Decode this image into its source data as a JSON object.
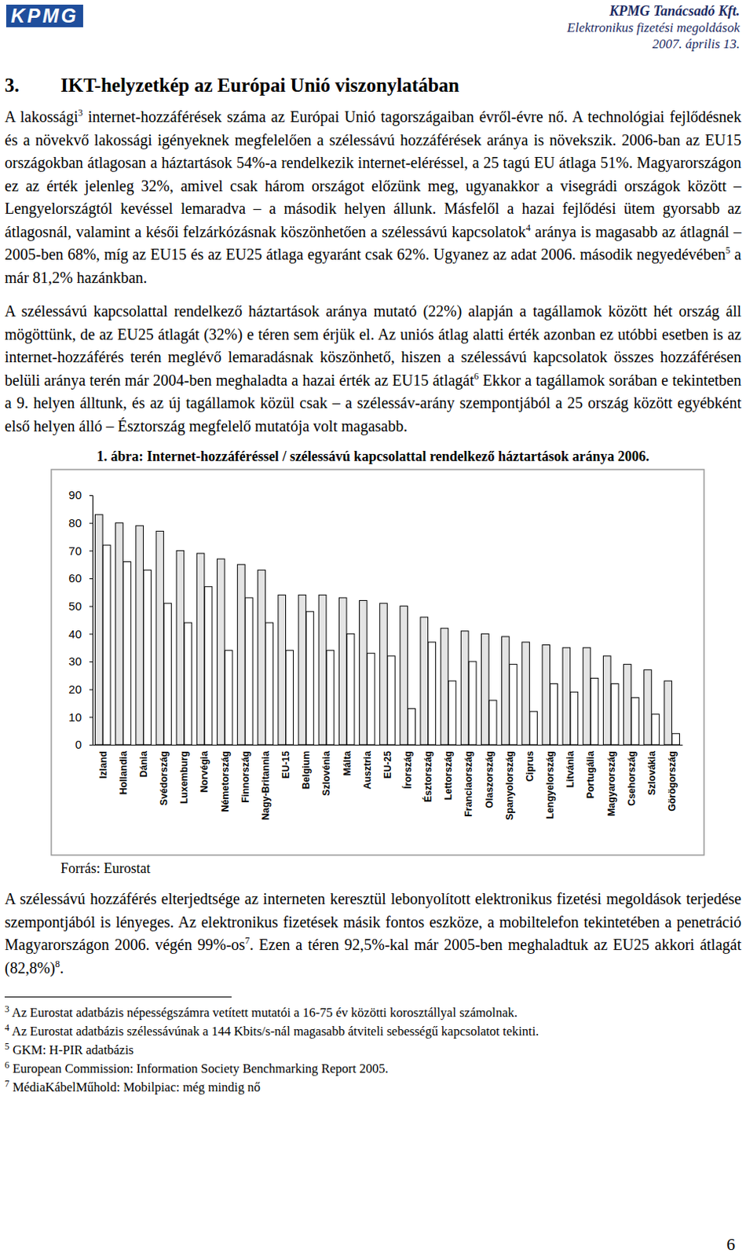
{
  "header": {
    "logo": "KPMG",
    "company": "KPMG Tanácsadó Kft.",
    "subtitle": "Elektronikus fizetési megoldások",
    "date": "2007. április 13."
  },
  "section": {
    "number": "3.",
    "title": "IKT-helyzetkép az Európai Unió viszonylatában"
  },
  "paragraphs_before": [
    {
      "runs": [
        {
          "text": "A lakossági"
        },
        {
          "sup": "3"
        },
        {
          "text": " internet-hozzáférések száma az Európai Unió tagországaiban évről-évre nő. A technológiai fejlődésnek és a növekvő lakossági igényeknek megfelelően a szélessávú hozzáférések aránya is növekszik. 2006-ban az EU15 országokban átlagosan a háztartások 54%-a rendelkezik internet-eléréssel, a 25 tagú EU átlaga 51%. Magyarországon ez az érték jelenleg 32%, amivel csak három országot előzünk meg, ugyanakkor a visegrádi országok között – Lengyelországtól kevéssel lemaradva – a második helyen állunk. Másfelől a hazai fejlődési ütem gyorsabb az átlagosnál, valamint a késői felzárkózásnak köszönhetően a szélessávú kapcsolatok"
        },
        {
          "sup": "4"
        },
        {
          "text": " aránya is magasabb az átlagnál – 2005-ben 68%, míg az EU15 és az EU25 átlaga egyaránt csak 62%. Ugyanez az adat 2006. második negyedévében"
        },
        {
          "sup": "5"
        },
        {
          "text": " a már 81,2% hazánkban."
        }
      ]
    },
    {
      "runs": [
        {
          "text": "A szélessávú kapcsolattal rendelkező háztartások aránya mutató (22%) alapján a tagállamok között hét ország áll mögöttünk, de az EU25 átlagát (32%) e téren sem érjük el. Az uniós átlag alatti érték azonban ez utóbbi esetben is az internet-hozzáférés terén meglévő lemaradásnak köszönhető, hiszen a szélessávú kapcsolatok összes hozzáférésen belüli aránya terén már 2004-ben meghaladta a hazai érték az EU15 átlagát"
        },
        {
          "sup": "6"
        },
        {
          "text": " Ekkor a tagállamok sorában e tekintetben a 9. helyen álltunk, és az új tagállamok közül csak – a szélessáv-arány szempontjából a 25 ország között egyébként első helyen álló – Észtország megfelelő mutatója volt magasabb."
        }
      ]
    }
  ],
  "chart_data": {
    "type": "bar",
    "title": "1. ábra: Internet-hozzáféréssel / szélessávú kapcsolattal rendelkező háztartások aránya 2006.",
    "categories": [
      "Izland",
      "Hollandia",
      "Dánia",
      "Svédország",
      "Luxemburg",
      "Norvégia",
      "Németország",
      "Finnország",
      "Nagy-Britannia",
      "EU-15",
      "Belgium",
      "Szlovénia",
      "Málta",
      "Ausztria",
      "EU-25",
      "Írország",
      "Észtország",
      "Lettország",
      "Franciaország",
      "Olaszország",
      "Spanyolország",
      "Ciprus",
      "Lengyelország",
      "Litvánia",
      "Portugália",
      "Magyarország",
      "Csehország",
      "Szlovákia",
      "Görögország"
    ],
    "series": [
      {
        "color": "#e4e4e4",
        "values": [
          83,
          80,
          79,
          77,
          70,
          69,
          67,
          65,
          63,
          54,
          54,
          54,
          53,
          52,
          51,
          50,
          46,
          42,
          41,
          40,
          39,
          37,
          36,
          35,
          35,
          32,
          29,
          27,
          23
        ]
      },
      {
        "color": "#ffffff",
        "values": [
          72,
          66,
          63,
          51,
          44,
          57,
          34,
          53,
          44,
          34,
          48,
          34,
          40,
          33,
          32,
          13,
          37,
          23,
          30,
          16,
          29,
          12,
          22,
          19,
          24,
          22,
          17,
          11,
          4
        ]
      }
    ],
    "ylim": [
      0,
      90
    ],
    "yticks": [
      0,
      10,
      20,
      30,
      40,
      50,
      60,
      70,
      80,
      90
    ],
    "grid": false
  },
  "figure_source": "Forrás: Eurostat",
  "paragraphs_after": [
    {
      "runs": [
        {
          "text": "A szélessávú hozzáférés elterjedtsége az interneten keresztül lebonyolított elektronikus fizetési megoldások terjedése szempontjából is lényeges. Az elektronikus fizetések másik fontos eszköze, a mobiltelefon tekintetében a penetráció Magyarországon 2006. végén 99%-os"
        },
        {
          "sup": "7"
        },
        {
          "text": ". Ezen a téren 92,5%-kal már 2005-ben meghaladtuk az EU25 akkori átlagát (82,8%)"
        },
        {
          "sup": "8"
        },
        {
          "text": "."
        }
      ]
    }
  ],
  "footnotes": [
    {
      "number": "3",
      "text": "Az Eurostat adatbázis népességszámra vetített mutatói a 16-75 év közötti korosztállyal számolnak."
    },
    {
      "number": "4",
      "text": "Az Eurostat adatbázis szélessávúnak a 144 Kbits/s-nál magasabb átviteli sebességű kapcsolatot tekinti."
    },
    {
      "number": "5",
      "text": "GKM: H-PIR adatbázis"
    },
    {
      "number": "6",
      "text": "European Commission: Information Society Benchmarking Report 2005."
    },
    {
      "number": "7",
      "text": "MédiaKábelMűhold: Mobilpiac: még mindig nő"
    }
  ],
  "page_number": "6"
}
